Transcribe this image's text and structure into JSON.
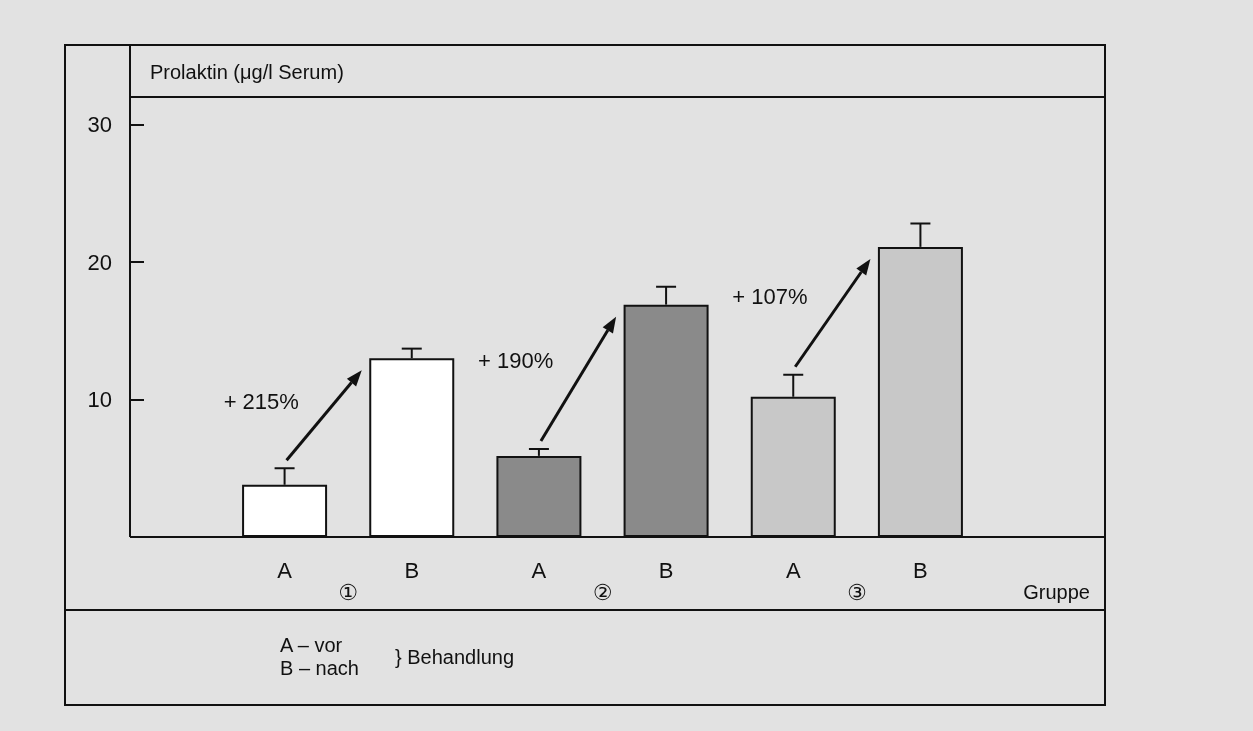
{
  "chart_data": {
    "type": "bar",
    "ylabel": "Prolaktin (μg/l Serum)",
    "xlabel": "Gruppe",
    "categories": [
      "A",
      "B",
      "A",
      "B",
      "A",
      "B"
    ],
    "values": [
      3.8,
      13,
      5.9,
      16.9,
      10.2,
      21.1
    ],
    "colors": [
      "#ffffff",
      "#ffffff",
      "#8a8a8a",
      "#8a8a8a",
      "#c8c8c8",
      "#c8c8c8"
    ],
    "errors": [
      [
        3.8,
        5.0
      ],
      [
        13,
        13.7
      ],
      [
        5.9,
        6.4
      ],
      [
        16.9,
        18.2
      ],
      [
        10.2,
        11.8
      ],
      [
        21.1,
        22.8
      ]
    ],
    "ylim": [
      0,
      32
    ],
    "yticks": [
      10,
      20,
      30
    ],
    "grid": false,
    "annotations": [
      "+ 215%",
      "+ 190%",
      "+ 107%",
      "①",
      "②",
      "③",
      "A – vor",
      "B – nach",
      "} Behandlung"
    ]
  }
}
